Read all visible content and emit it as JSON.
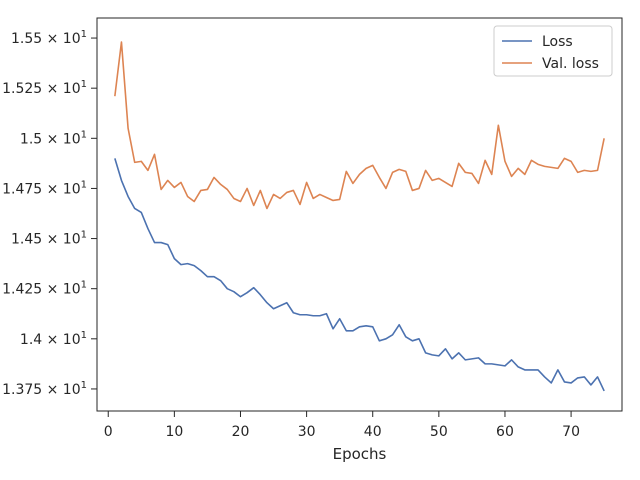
{
  "chart_data": {
    "type": "line",
    "title": "",
    "xlabel": "Epochs",
    "ylabel": "",
    "xlim": [
      -1.7,
      77.7
    ],
    "ylim": [
      13.64,
      15.6
    ],
    "grid": false,
    "legend_placement": "top-right",
    "xticks": [
      0,
      10,
      20,
      30,
      40,
      50,
      60,
      70
    ],
    "xtick_labels": [
      "0",
      "10",
      "20",
      "30",
      "40",
      "50",
      "60",
      "70"
    ],
    "yticks": [
      13.75,
      14.0,
      14.25,
      14.5,
      14.75,
      15.0,
      15.25,
      15.5
    ],
    "ytick_labels": [
      {
        "mantissa": "1.375",
        "times": "×",
        "base": "10",
        "exp": "1"
      },
      {
        "mantissa": "1.4",
        "times": "×",
        "base": "10",
        "exp": "1"
      },
      {
        "mantissa": "1.425",
        "times": "×",
        "base": "10",
        "exp": "1"
      },
      {
        "mantissa": "1.45",
        "times": "×",
        "base": "10",
        "exp": "1"
      },
      {
        "mantissa": "1.475",
        "times": "×",
        "base": "10",
        "exp": "1"
      },
      {
        "mantissa": "1.5",
        "times": "×",
        "base": "10",
        "exp": "1"
      },
      {
        "mantissa": "1.525",
        "times": "×",
        "base": "10",
        "exp": "1"
      },
      {
        "mantissa": "1.55",
        "times": "×",
        "base": "10",
        "exp": "1"
      }
    ],
    "x": [
      1,
      2,
      3,
      4,
      5,
      6,
      7,
      8,
      9,
      10,
      11,
      12,
      13,
      14,
      15,
      16,
      17,
      18,
      19,
      20,
      21,
      22,
      23,
      24,
      25,
      26,
      27,
      28,
      29,
      30,
      31,
      32,
      33,
      34,
      35,
      36,
      37,
      38,
      39,
      40,
      41,
      42,
      43,
      44,
      45,
      46,
      47,
      48,
      49,
      50,
      51,
      52,
      53,
      54,
      55,
      56,
      57,
      58,
      59,
      60,
      61,
      62,
      63,
      64,
      65,
      66,
      67,
      68,
      69,
      70,
      71,
      72,
      73,
      74,
      75
    ],
    "series": [
      {
        "name": "Loss",
        "color": "#4c72b0",
        "values": [
          14.9,
          14.79,
          14.71,
          14.65,
          14.63,
          14.55,
          14.48,
          14.48,
          14.47,
          14.4,
          14.37,
          14.375,
          14.365,
          14.34,
          14.31,
          14.31,
          14.29,
          14.25,
          14.235,
          14.21,
          14.23,
          14.255,
          14.22,
          14.18,
          14.15,
          14.165,
          14.18,
          14.13,
          14.12,
          14.12,
          14.115,
          14.115,
          14.125,
          14.05,
          14.1,
          14.04,
          14.04,
          14.06,
          14.065,
          14.06,
          13.99,
          14.0,
          14.02,
          14.07,
          14.01,
          13.99,
          14.0,
          13.93,
          13.92,
          13.915,
          13.95,
          13.9,
          13.93,
          13.895,
          13.9,
          13.905,
          13.875,
          13.875,
          13.87,
          13.865,
          13.895,
          13.86,
          13.845,
          13.845,
          13.845,
          13.81,
          13.78,
          13.845,
          13.785,
          13.78,
          13.805,
          13.81,
          13.77,
          13.81,
          13.74
        ]
      },
      {
        "name": "Val. loss",
        "color": "#dd8452",
        "values": [
          15.21,
          15.48,
          15.05,
          14.88,
          14.885,
          14.84,
          14.92,
          14.745,
          14.79,
          14.755,
          14.78,
          14.71,
          14.685,
          14.74,
          14.745,
          14.805,
          14.77,
          14.745,
          14.7,
          14.685,
          14.75,
          14.665,
          14.74,
          14.65,
          14.72,
          14.7,
          14.73,
          14.74,
          14.67,
          14.78,
          14.7,
          14.72,
          14.705,
          14.69,
          14.695,
          14.835,
          14.775,
          14.82,
          14.85,
          14.865,
          14.805,
          14.75,
          14.83,
          14.845,
          14.835,
          14.74,
          14.75,
          14.84,
          14.79,
          14.8,
          14.78,
          14.76,
          14.875,
          14.83,
          14.825,
          14.775,
          14.89,
          14.82,
          15.065,
          14.885,
          14.81,
          14.85,
          14.82,
          14.89,
          14.87,
          14.86,
          14.855,
          14.85,
          14.9,
          14.885,
          14.83,
          14.84,
          14.835,
          14.84,
          15.0
        ]
      }
    ]
  }
}
